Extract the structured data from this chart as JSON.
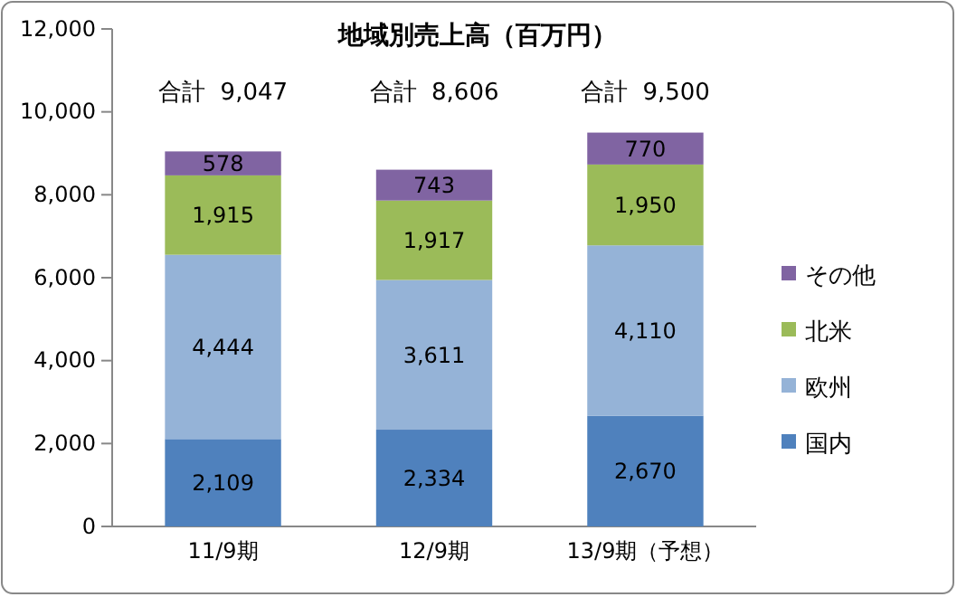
{
  "chart_data": {
    "type": "bar",
    "title": "地域別売上高（百万円）",
    "stacked": true,
    "categories": [
      "11/9期",
      "12/9期",
      "13/9期（予想）"
    ],
    "series": [
      {
        "name": "国内",
        "color": "#4f81bd",
        "values": [
          2109,
          2334,
          2670
        ],
        "value_labels": [
          "2,109",
          "2,334",
          "2,670"
        ]
      },
      {
        "name": "欧州",
        "color": "#95b3d7",
        "values": [
          4444,
          3611,
          4110
        ],
        "value_labels": [
          "4,444",
          "3,611",
          "4,110"
        ]
      },
      {
        "name": "北米",
        "color": "#9bbb59",
        "values": [
          1915,
          1917,
          1950
        ],
        "value_labels": [
          "1,915",
          "1,917",
          "1,950"
        ]
      },
      {
        "name": "その他",
        "color": "#8064a2",
        "values": [
          578,
          743,
          770
        ],
        "value_labels": [
          "578",
          "743",
          "770"
        ]
      }
    ],
    "ylim": [
      0,
      12000
    ],
    "yticks": [
      0,
      {
        "value": 2000,
        "label": "2,000"
      },
      {
        "value": 4000,
        "label": "4,000"
      },
      {
        "value": 6000,
        "label": "6,000"
      },
      {
        "value": 8000,
        "label": "8,000"
      },
      {
        "value": 10000,
        "label": "10,000"
      },
      {
        "value": 12000,
        "label": "12,000"
      }
    ],
    "totals": [
      "合計  9,047",
      "合計  8,606",
      "合計  9,500"
    ],
    "legend": "right"
  }
}
